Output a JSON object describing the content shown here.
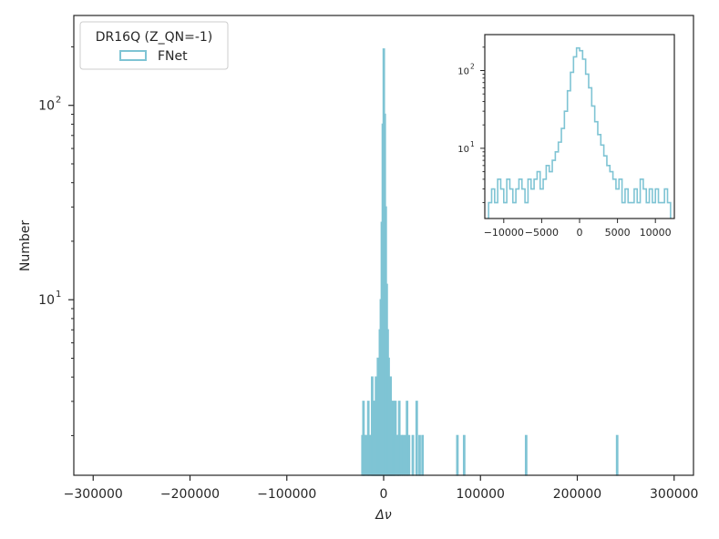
{
  "chart_data": [
    {
      "type": "histogram",
      "scale_y": "log",
      "xlabel": "Δν",
      "ylabel": "Number",
      "xlim": [
        -320000,
        320000
      ],
      "ylim": [
        1.25,
        290
      ],
      "x_ticks": [
        -300000,
        -200000,
        -100000,
        0,
        100000,
        200000,
        300000
      ],
      "x_tick_labels": [
        "−300000",
        "−200000",
        "−100000",
        "0",
        "100000",
        "200000",
        "300000"
      ],
      "y_ticks": [
        {
          "value": 10,
          "base": "10",
          "exp": "1"
        },
        {
          "value": 100,
          "base": "10",
          "exp": "2"
        }
      ],
      "legend": {
        "title": "DR16Q (Z_QN=-1)",
        "placement": "top-left",
        "entries": [
          {
            "label": "FNet",
            "color": "#7fc4d4"
          }
        ]
      },
      "series": [
        {
          "name": "FNet",
          "color": "#7fc4d4",
          "bins": [
            [
              -22000,
              2
            ],
            [
              -21000,
              3
            ],
            [
              -20000,
              2
            ],
            [
              -18000,
              2
            ],
            [
              -16000,
              3
            ],
            [
              -15000,
              2
            ],
            [
              -13000,
              2
            ],
            [
              -12000,
              4
            ],
            [
              -11000,
              3
            ],
            [
              -10000,
              2
            ],
            [
              -9000,
              3
            ],
            [
              -8000,
              4
            ],
            [
              -7000,
              3
            ],
            [
              -6000,
              5
            ],
            [
              -5000,
              4
            ],
            [
              -4000,
              7
            ],
            [
              -3000,
              10
            ],
            [
              -2000,
              25
            ],
            [
              -1000,
              80
            ],
            [
              0,
              195
            ],
            [
              1000,
              90
            ],
            [
              2000,
              30
            ],
            [
              3000,
              12
            ],
            [
              4000,
              7
            ],
            [
              5000,
              5
            ],
            [
              6000,
              3
            ],
            [
              7000,
              4
            ],
            [
              8000,
              3
            ],
            [
              9000,
              2
            ],
            [
              10000,
              3
            ],
            [
              11000,
              2
            ],
            [
              12000,
              3
            ],
            [
              14000,
              2
            ],
            [
              15000,
              2
            ],
            [
              16000,
              3
            ],
            [
              18000,
              2
            ],
            [
              20000,
              2
            ],
            [
              22000,
              2
            ],
            [
              24000,
              3
            ],
            [
              26000,
              2
            ],
            [
              30000,
              2
            ],
            [
              34000,
              3
            ],
            [
              37000,
              2
            ],
            [
              40000,
              2
            ],
            [
              76000,
              2
            ],
            [
              83000,
              2
            ],
            [
              147000,
              2
            ],
            [
              241000,
              2
            ]
          ]
        }
      ]
    },
    {
      "type": "histogram",
      "role": "inset",
      "scale_y": "log",
      "xlim": [
        -12500,
        12500
      ],
      "ylim": [
        1.25,
        290
      ],
      "x_ticks": [
        -10000,
        -5000,
        0,
        5000,
        10000
      ],
      "x_tick_labels": [
        "−10000",
        "−5000",
        "0",
        "5000",
        "10000"
      ],
      "y_ticks": [
        {
          "value": 10,
          "base": "10",
          "exp": "1"
        },
        {
          "value": 100,
          "base": "10",
          "exp": "2"
        }
      ],
      "series": [
        {
          "name": "FNet",
          "color": "#7fc4d4",
          "bins": [
            [
              -11800,
              2
            ],
            [
              -11400,
              3
            ],
            [
              -11000,
              2
            ],
            [
              -10600,
              4
            ],
            [
              -10200,
              3
            ],
            [
              -9800,
              2
            ],
            [
              -9400,
              4
            ],
            [
              -9000,
              3
            ],
            [
              -8600,
              2
            ],
            [
              -8200,
              3
            ],
            [
              -7800,
              4
            ],
            [
              -7400,
              3
            ],
            [
              -7000,
              2
            ],
            [
              -6600,
              4
            ],
            [
              -6200,
              3
            ],
            [
              -5800,
              4
            ],
            [
              -5400,
              5
            ],
            [
              -5000,
              3
            ],
            [
              -4600,
              4
            ],
            [
              -4200,
              6
            ],
            [
              -3800,
              5
            ],
            [
              -3400,
              7
            ],
            [
              -3000,
              9
            ],
            [
              -2600,
              12
            ],
            [
              -2200,
              18
            ],
            [
              -1800,
              30
            ],
            [
              -1400,
              55
            ],
            [
              -1000,
              95
            ],
            [
              -600,
              150
            ],
            [
              -200,
              195
            ],
            [
              200,
              180
            ],
            [
              600,
              140
            ],
            [
              1000,
              90
            ],
            [
              1400,
              60
            ],
            [
              1800,
              35
            ],
            [
              2200,
              22
            ],
            [
              2600,
              15
            ],
            [
              3000,
              11
            ],
            [
              3400,
              8
            ],
            [
              3800,
              6
            ],
            [
              4200,
              5
            ],
            [
              4600,
              4
            ],
            [
              5000,
              3
            ],
            [
              5400,
              4
            ],
            [
              5800,
              2
            ],
            [
              6200,
              3
            ],
            [
              6600,
              2
            ],
            [
              7000,
              2
            ],
            [
              7400,
              3
            ],
            [
              7800,
              2
            ],
            [
              8200,
              4
            ],
            [
              8600,
              3
            ],
            [
              9000,
              2
            ],
            [
              9400,
              3
            ],
            [
              9800,
              2
            ],
            [
              10200,
              3
            ],
            [
              10600,
              2
            ],
            [
              11000,
              2
            ],
            [
              11400,
              3
            ],
            [
              11800,
              2
            ]
          ]
        }
      ]
    }
  ]
}
